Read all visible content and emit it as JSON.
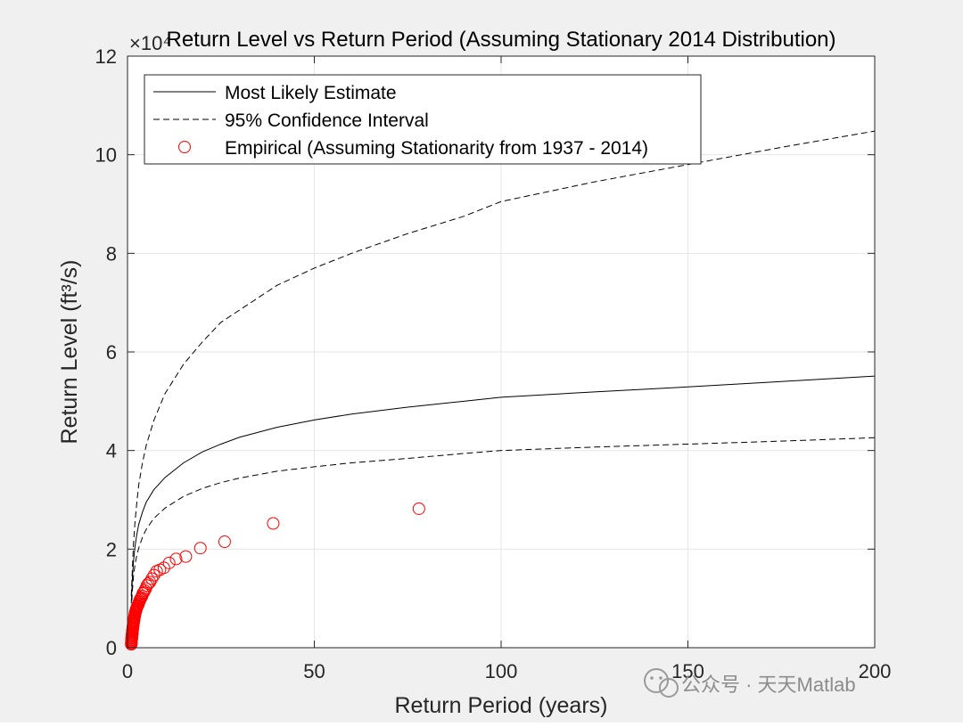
{
  "chart_data": {
    "type": "line",
    "title": "Return Level vs Return Period (Assuming Stationary 2014 Distribution)",
    "xlabel": "Return Period (years)",
    "ylabel": "Return Level (ft³/s)",
    "y_exponent_label": "×10⁴",
    "xlim": [
      0,
      200
    ],
    "ylim": [
      0,
      12
    ],
    "x_ticks": [
      0,
      50,
      100,
      150,
      200
    ],
    "y_ticks": [
      0,
      2,
      4,
      6,
      8,
      10,
      12
    ],
    "grid": true,
    "legend_position": "top-left",
    "series": [
      {
        "name": "Most Likely Estimate",
        "style": "solid",
        "color": "#000000",
        "x": [
          1.0,
          1.3,
          1.6,
          2.0,
          2.5,
          3.0,
          4.0,
          5.0,
          7.0,
          10.0,
          15.0,
          20.0,
          25.0,
          30.0,
          40.0,
          50.0,
          60.0,
          75.0,
          90.0,
          100.0,
          125.0,
          150.0,
          175.0,
          200.0
        ],
        "y": [
          0.9,
          1.4,
          1.75,
          2.05,
          2.3,
          2.5,
          2.75,
          2.95,
          3.2,
          3.45,
          3.75,
          3.97,
          4.13,
          4.27,
          4.47,
          4.62,
          4.74,
          4.88,
          5.0,
          5.08,
          5.19,
          5.29,
          5.4,
          5.51
        ]
      },
      {
        "name": "95% Confidence Interval",
        "style": "dashed",
        "color": "#000000",
        "x": [
          1.0,
          1.3,
          1.6,
          2.0,
          2.5,
          3.0,
          4.0,
          5.0,
          7.0,
          10.0,
          15.0,
          20.0,
          25.0,
          30.0,
          40.0,
          50.0,
          60.0,
          75.0,
          90.0,
          100.0,
          125.0,
          150.0,
          175.0,
          200.0
        ],
        "y": [
          1.05,
          1.6,
          2.1,
          2.55,
          2.95,
          3.3,
          3.75,
          4.1,
          4.6,
          5.15,
          5.75,
          6.2,
          6.6,
          6.85,
          7.35,
          7.7,
          8.0,
          8.4,
          8.75,
          9.05,
          9.45,
          9.8,
          10.15,
          10.48
        ]
      },
      {
        "name": "95% Confidence Interval (lower)",
        "style": "dashed",
        "color": "#000000",
        "x": [
          1.0,
          1.3,
          1.6,
          2.0,
          2.5,
          3.0,
          4.0,
          5.0,
          7.0,
          10.0,
          15.0,
          20.0,
          25.0,
          30.0,
          40.0,
          50.0,
          60.0,
          75.0,
          90.0,
          100.0,
          125.0,
          150.0,
          175.0,
          200.0
        ],
        "y": [
          0.75,
          1.15,
          1.45,
          1.68,
          1.88,
          2.02,
          2.24,
          2.4,
          2.62,
          2.83,
          3.07,
          3.23,
          3.35,
          3.44,
          3.58,
          3.67,
          3.75,
          3.84,
          3.94,
          4.0,
          4.07,
          4.13,
          4.19,
          4.26
        ]
      },
      {
        "name": "Empirical (Assuming Stationarity from 1937 - 2014)",
        "style": "markers",
        "marker": "circle",
        "color": "#ff0000",
        "x": [
          78.0,
          39.0,
          26.0,
          19.5,
          15.6,
          13.0,
          11.14,
          9.75,
          8.67,
          7.8,
          7.09,
          6.5,
          6.0,
          5.57,
          5.2,
          4.88,
          4.59,
          4.33,
          4.1,
          3.9,
          3.71,
          3.55,
          3.39,
          3.25,
          3.12,
          3.0,
          2.89,
          2.79,
          2.69,
          2.6,
          2.52,
          2.44,
          2.36,
          2.29,
          2.23,
          2.17,
          2.11,
          2.05,
          2.0,
          1.95,
          1.9,
          1.86,
          1.81,
          1.77,
          1.73,
          1.7,
          1.66,
          1.63,
          1.59,
          1.56,
          1.53,
          1.5,
          1.47,
          1.44,
          1.42,
          1.39,
          1.37,
          1.34,
          1.32,
          1.3,
          1.28,
          1.26,
          1.24,
          1.22,
          1.2,
          1.18,
          1.16,
          1.15,
          1.13,
          1.11,
          1.1,
          1.08,
          1.07,
          1.05,
          1.04,
          1.03,
          1.01
        ],
        "y": [
          2.82,
          2.52,
          2.15,
          2.02,
          1.85,
          1.8,
          1.72,
          1.62,
          1.58,
          1.55,
          1.47,
          1.4,
          1.33,
          1.3,
          1.26,
          1.2,
          1.16,
          1.12,
          1.1,
          1.05,
          1.02,
          1.0,
          0.98,
          0.95,
          0.93,
          0.9,
          0.88,
          0.86,
          0.85,
          0.84,
          0.82,
          0.8,
          0.78,
          0.77,
          0.75,
          0.73,
          0.72,
          0.7,
          0.68,
          0.66,
          0.64,
          0.62,
          0.6,
          0.58,
          0.56,
          0.55,
          0.53,
          0.51,
          0.5,
          0.48,
          0.46,
          0.45,
          0.43,
          0.41,
          0.4,
          0.38,
          0.37,
          0.35,
          0.33,
          0.32,
          0.3,
          0.29,
          0.27,
          0.26,
          0.24,
          0.23,
          0.21,
          0.2,
          0.19,
          0.17,
          0.16,
          0.15,
          0.13,
          0.12,
          0.11,
          0.09,
          0.07
        ]
      }
    ],
    "legend": [
      {
        "label": "Most Likely Estimate",
        "style": "solid"
      },
      {
        "label": "95% Confidence Interval",
        "style": "dashed"
      },
      {
        "label": "Empirical (Assuming Stationarity from 1937 - 2014)",
        "style": "markers"
      }
    ]
  },
  "watermark": {
    "text": "公众号 · 天天Matlab",
    "icon": "wechat-icon"
  }
}
